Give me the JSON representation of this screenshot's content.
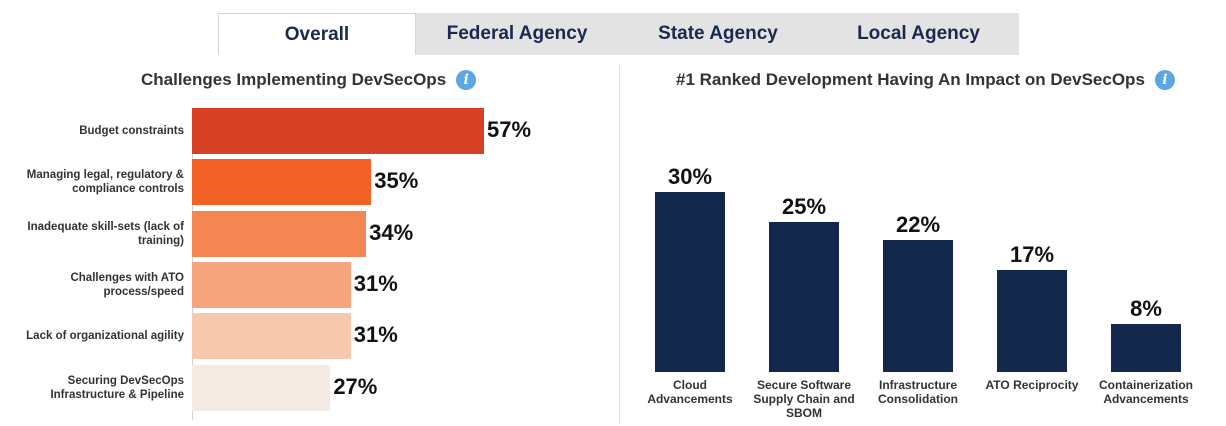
{
  "tabs": [
    {
      "label": "Overall",
      "active": true
    },
    {
      "label": "Federal Agency",
      "active": false
    },
    {
      "label": "State Agency",
      "active": false
    },
    {
      "label": "Local Agency",
      "active": false
    }
  ],
  "info_icon": "i",
  "chart_data": [
    {
      "type": "bar",
      "orientation": "horizontal",
      "title": "Challenges Implementing DevSecOps",
      "categories": [
        "Budget constraints",
        "Managing legal, regulatory & compliance controls",
        "Inadequate skill-sets (lack of training)",
        "Challenges with ATO process/speed",
        "Lack of organizational agility",
        "Securing DevSecOps Infrastructure & Pipeline"
      ],
      "values": [
        57,
        35,
        34,
        31,
        31,
        27
      ],
      "value_labels": [
        "57%",
        "35%",
        "34%",
        "31%",
        "31%",
        "27%"
      ],
      "colors": [
        "#d64025",
        "#f26125",
        "#f48654",
        "#f5a67c",
        "#f6c8ae",
        "#f5e9e4"
      ],
      "xlim": [
        0,
        57
      ],
      "grid": false
    },
    {
      "type": "bar",
      "orientation": "vertical",
      "title": "#1 Ranked Development  Having An Impact on DevSecOps",
      "categories": [
        "Cloud Advancements",
        "Secure Software Supply Chain and SBOM",
        "Infrastructure Consolidation",
        "ATO Reciprocity",
        "Containerization Advancements"
      ],
      "values": [
        30,
        25,
        22,
        17,
        8
      ],
      "value_labels": [
        "30%",
        "25%",
        "22%",
        "17%",
        "8%"
      ],
      "color": "#14274d",
      "ylim": [
        0,
        30
      ],
      "grid": false
    }
  ]
}
